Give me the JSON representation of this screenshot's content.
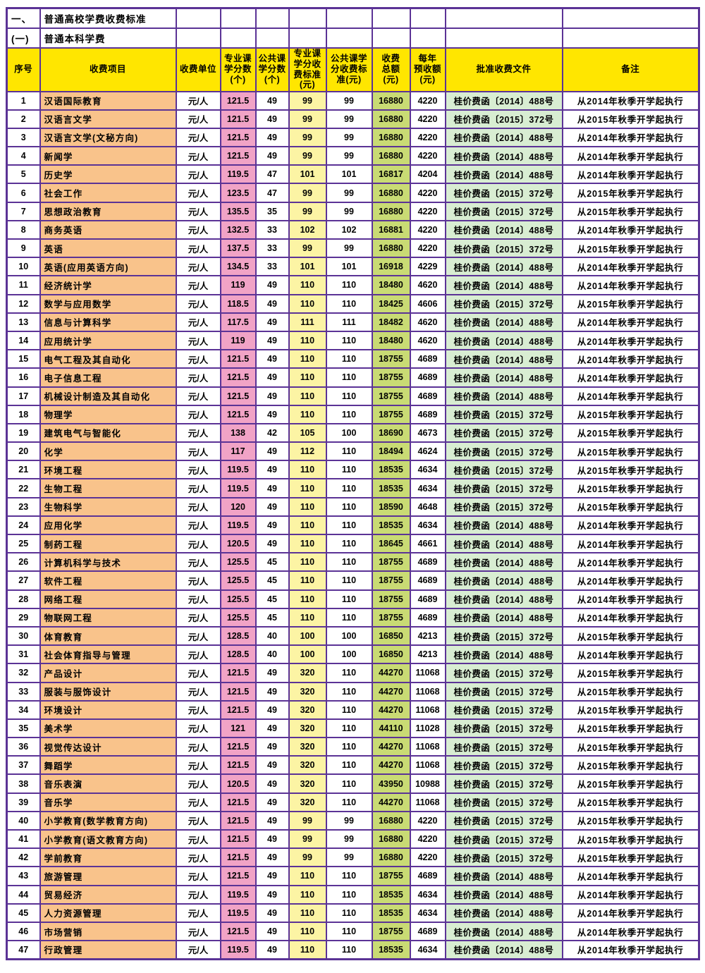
{
  "colors": {
    "border": "#5b3396",
    "header_bg": "#ffe600",
    "item_col_bg": "#f9c38b",
    "prof_credits_bg": "#f1a3c6",
    "prof_rate_bg": "#fcf4a4",
    "total_bg": "#c9db74",
    "doc_bg": "#d8edd2"
  },
  "table": {
    "section_rows": [
      [
        "一、",
        "普通高校学费收费标准",
        "",
        "",
        "",
        "",
        "",
        "",
        "",
        "",
        ""
      ],
      [
        "(一)",
        "普通本科学费",
        "",
        "",
        "",
        "",
        "",
        "",
        "",
        "",
        ""
      ]
    ],
    "headers": [
      "序号",
      "收费项目",
      "收费单位",
      "专业课\n学分数\n(个)",
      "公共课\n学分数\n(个)",
      "专业课\n学分收\n费标准\n(元)",
      "公共课学\n分收费标\n准(元)",
      "收费\n总额\n(元)",
      "每年\n预收额\n(元)",
      "批准收费文件",
      "备注"
    ],
    "rows": [
      [
        "1",
        "汉语国际教育",
        "元/人",
        "121.5",
        "49",
        "99",
        "99",
        "16880",
        "4220",
        "桂价费函〔2014〕488号",
        "从2014年秋季开学起执行"
      ],
      [
        "2",
        "汉语言文学",
        "元/人",
        "121.5",
        "49",
        "99",
        "99",
        "16880",
        "4220",
        "桂价费函〔2015〕372号",
        "从2015年秋季开学起执行"
      ],
      [
        "3",
        "汉语言文学(文秘方向)",
        "元/人",
        "121.5",
        "49",
        "99",
        "99",
        "16880",
        "4220",
        "桂价费函〔2014〕488号",
        "从2014年秋季开学起执行"
      ],
      [
        "4",
        "新闻学",
        "元/人",
        "121.5",
        "49",
        "99",
        "99",
        "16880",
        "4220",
        "桂价费函〔2014〕488号",
        "从2014年秋季开学起执行"
      ],
      [
        "5",
        "历史学",
        "元/人",
        "119.5",
        "47",
        "101",
        "101",
        "16817",
        "4204",
        "桂价费函〔2014〕488号",
        "从2014年秋季开学起执行"
      ],
      [
        "6",
        "社会工作",
        "元/人",
        "123.5",
        "47",
        "99",
        "99",
        "16880",
        "4220",
        "桂价费函〔2015〕372号",
        "从2015年秋季开学起执行"
      ],
      [
        "7",
        "思想政治教育",
        "元/人",
        "135.5",
        "35",
        "99",
        "99",
        "16880",
        "4220",
        "桂价费函〔2015〕372号",
        "从2015年秋季开学起执行"
      ],
      [
        "8",
        "商务英语",
        "元/人",
        "132.5",
        "33",
        "102",
        "102",
        "16881",
        "4220",
        "桂价费函〔2014〕488号",
        "从2014年秋季开学起执行"
      ],
      [
        "9",
        "英语",
        "元/人",
        "137.5",
        "33",
        "99",
        "99",
        "16880",
        "4220",
        "桂价费函〔2015〕372号",
        "从2015年秋季开学起执行"
      ],
      [
        "10",
        "英语(应用英语方向)",
        "元/人",
        "134.5",
        "33",
        "101",
        "101",
        "16918",
        "4229",
        "桂价费函〔2014〕488号",
        "从2014年秋季开学起执行"
      ],
      [
        "11",
        "经济统计学",
        "元/人",
        "119",
        "49",
        "110",
        "110",
        "18480",
        "4620",
        "桂价费函〔2014〕488号",
        "从2014年秋季开学起执行"
      ],
      [
        "12",
        "数学与应用数学",
        "元/人",
        "118.5",
        "49",
        "110",
        "110",
        "18425",
        "4606",
        "桂价费函〔2015〕372号",
        "从2015年秋季开学起执行"
      ],
      [
        "13",
        "信息与计算科学",
        "元/人",
        "117.5",
        "49",
        "111",
        "111",
        "18482",
        "4620",
        "桂价费函〔2014〕488号",
        "从2014年秋季开学起执行"
      ],
      [
        "14",
        "应用统计学",
        "元/人",
        "119",
        "49",
        "110",
        "110",
        "18480",
        "4620",
        "桂价费函〔2014〕488号",
        "从2014年秋季开学起执行"
      ],
      [
        "15",
        "电气工程及其自动化",
        "元/人",
        "121.5",
        "49",
        "110",
        "110",
        "18755",
        "4689",
        "桂价费函〔2014〕488号",
        "从2014年秋季开学起执行"
      ],
      [
        "16",
        "电子信息工程",
        "元/人",
        "121.5",
        "49",
        "110",
        "110",
        "18755",
        "4689",
        "桂价费函〔2014〕488号",
        "从2014年秋季开学起执行"
      ],
      [
        "17",
        "机械设计制造及其自动化",
        "元/人",
        "121.5",
        "49",
        "110",
        "110",
        "18755",
        "4689",
        "桂价费函〔2014〕488号",
        "从2014年秋季开学起执行"
      ],
      [
        "18",
        "物理学",
        "元/人",
        "121.5",
        "49",
        "110",
        "110",
        "18755",
        "4689",
        "桂价费函〔2015〕372号",
        "从2015年秋季开学起执行"
      ],
      [
        "19",
        "建筑电气与智能化",
        "元/人",
        "138",
        "42",
        "105",
        "100",
        "18690",
        "4673",
        "桂价费函〔2015〕372号",
        "从2015年秋季开学起执行"
      ],
      [
        "20",
        "化学",
        "元/人",
        "117",
        "49",
        "112",
        "110",
        "18494",
        "4624",
        "桂价费函〔2015〕372号",
        "从2015年秋季开学起执行"
      ],
      [
        "21",
        "环境工程",
        "元/人",
        "119.5",
        "49",
        "110",
        "110",
        "18535",
        "4634",
        "桂价费函〔2015〕372号",
        "从2015年秋季开学起执行"
      ],
      [
        "22",
        "生物工程",
        "元/人",
        "119.5",
        "49",
        "110",
        "110",
        "18535",
        "4634",
        "桂价费函〔2015〕372号",
        "从2015年秋季开学起执行"
      ],
      [
        "23",
        "生物科学",
        "元/人",
        "120",
        "49",
        "110",
        "110",
        "18590",
        "4648",
        "桂价费函〔2015〕372号",
        "从2015年秋季开学起执行"
      ],
      [
        "24",
        "应用化学",
        "元/人",
        "119.5",
        "49",
        "110",
        "110",
        "18535",
        "4634",
        "桂价费函〔2014〕488号",
        "从2014年秋季开学起执行"
      ],
      [
        "25",
        "制药工程",
        "元/人",
        "120.5",
        "49",
        "110",
        "110",
        "18645",
        "4661",
        "桂价费函〔2014〕488号",
        "从2014年秋季开学起执行"
      ],
      [
        "26",
        "计算机科学与技术",
        "元/人",
        "125.5",
        "45",
        "110",
        "110",
        "18755",
        "4689",
        "桂价费函〔2014〕488号",
        "从2014年秋季开学起执行"
      ],
      [
        "27",
        "软件工程",
        "元/人",
        "125.5",
        "45",
        "110",
        "110",
        "18755",
        "4689",
        "桂价费函〔2014〕488号",
        "从2014年秋季开学起执行"
      ],
      [
        "28",
        "网络工程",
        "元/人",
        "125.5",
        "45",
        "110",
        "110",
        "18755",
        "4689",
        "桂价费函〔2014〕488号",
        "从2014年秋季开学起执行"
      ],
      [
        "29",
        "物联网工程",
        "元/人",
        "125.5",
        "45",
        "110",
        "110",
        "18755",
        "4689",
        "桂价费函〔2014〕488号",
        "从2014年秋季开学起执行"
      ],
      [
        "30",
        "体育教育",
        "元/人",
        "128.5",
        "40",
        "100",
        "100",
        "16850",
        "4213",
        "桂价费函〔2015〕372号",
        "从2015年秋季开学起执行"
      ],
      [
        "31",
        "社会体育指导与管理",
        "元/人",
        "128.5",
        "40",
        "100",
        "100",
        "16850",
        "4213",
        "桂价费函〔2014〕488号",
        "从2014年秋季开学起执行"
      ],
      [
        "32",
        "产品设计",
        "元/人",
        "121.5",
        "49",
        "320",
        "110",
        "44270",
        "11068",
        "桂价费函〔2015〕372号",
        "从2015年秋季开学起执行"
      ],
      [
        "33",
        "服装与服饰设计",
        "元/人",
        "121.5",
        "49",
        "320",
        "110",
        "44270",
        "11068",
        "桂价费函〔2015〕372号",
        "从2015年秋季开学起执行"
      ],
      [
        "34",
        "环境设计",
        "元/人",
        "121.5",
        "49",
        "320",
        "110",
        "44270",
        "11068",
        "桂价费函〔2015〕372号",
        "从2015年秋季开学起执行"
      ],
      [
        "35",
        "美术学",
        "元/人",
        "121",
        "49",
        "320",
        "110",
        "44110",
        "11028",
        "桂价费函〔2015〕372号",
        "从2015年秋季开学起执行"
      ],
      [
        "36",
        "视觉传达设计",
        "元/人",
        "121.5",
        "49",
        "320",
        "110",
        "44270",
        "11068",
        "桂价费函〔2015〕372号",
        "从2015年秋季开学起执行"
      ],
      [
        "37",
        "舞蹈学",
        "元/人",
        "121.5",
        "49",
        "320",
        "110",
        "44270",
        "11068",
        "桂价费函〔2015〕372号",
        "从2015年秋季开学起执行"
      ],
      [
        "38",
        "音乐表演",
        "元/人",
        "120.5",
        "49",
        "320",
        "110",
        "43950",
        "10988",
        "桂价费函〔2015〕372号",
        "从2015年秋季开学起执行"
      ],
      [
        "39",
        "音乐学",
        "元/人",
        "121.5",
        "49",
        "320",
        "110",
        "44270",
        "11068",
        "桂价费函〔2015〕372号",
        "从2015年秋季开学起执行"
      ],
      [
        "40",
        "小学教育(数学教育方向)",
        "元/人",
        "121.5",
        "49",
        "99",
        "99",
        "16880",
        "4220",
        "桂价费函〔2015〕372号",
        "从2015年秋季开学起执行"
      ],
      [
        "41",
        "小学教育(语文教育方向)",
        "元/人",
        "121.5",
        "49",
        "99",
        "99",
        "16880",
        "4220",
        "桂价费函〔2015〕372号",
        "从2015年秋季开学起执行"
      ],
      [
        "42",
        "学前教育",
        "元/人",
        "121.5",
        "49",
        "99",
        "99",
        "16880",
        "4220",
        "桂价费函〔2015〕372号",
        "从2015年秋季开学起执行"
      ],
      [
        "43",
        "旅游管理",
        "元/人",
        "121.5",
        "49",
        "110",
        "110",
        "18755",
        "4689",
        "桂价费函〔2014〕488号",
        "从2014年秋季开学起执行"
      ],
      [
        "44",
        "贸易经济",
        "元/人",
        "119.5",
        "49",
        "110",
        "110",
        "18535",
        "4634",
        "桂价费函〔2014〕488号",
        "从2014年秋季开学起执行"
      ],
      [
        "45",
        "人力资源管理",
        "元/人",
        "119.5",
        "49",
        "110",
        "110",
        "18535",
        "4634",
        "桂价费函〔2014〕488号",
        "从2014年秋季开学起执行"
      ],
      [
        "46",
        "市场营销",
        "元/人",
        "121.5",
        "49",
        "110",
        "110",
        "18755",
        "4689",
        "桂价费函〔2014〕488号",
        "从2014年秋季开学起执行"
      ],
      [
        "47",
        "行政管理",
        "元/人",
        "119.5",
        "49",
        "110",
        "110",
        "18535",
        "4634",
        "桂价费函〔2014〕488号",
        "从2014年秋季开学起执行"
      ]
    ]
  }
}
